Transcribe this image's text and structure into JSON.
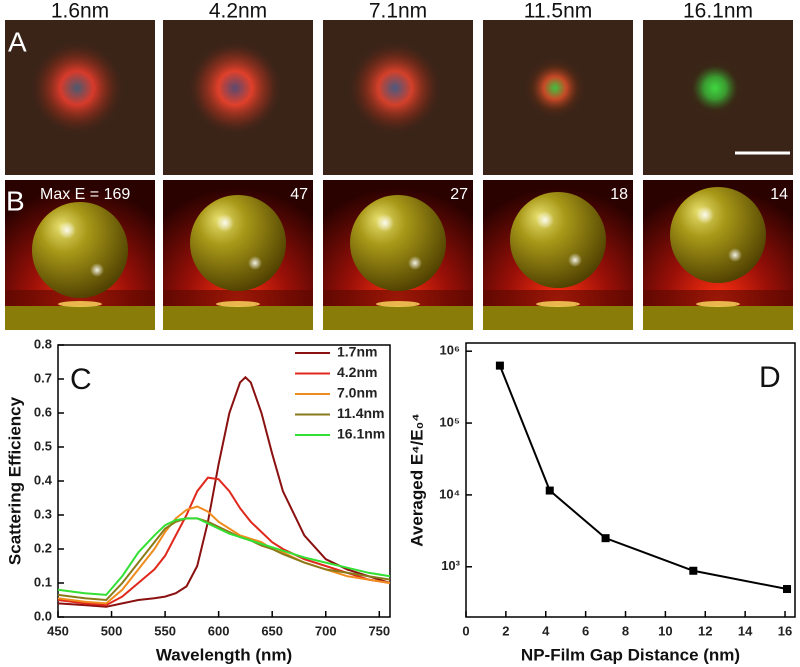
{
  "figure": {
    "columns": [
      "1.6nm",
      "4.2nm",
      "7.1nm",
      "11.5nm",
      "16.1nm"
    ],
    "row_labels": [
      "A",
      "B"
    ],
    "max_e_labels": [
      "Max E = 169",
      "47",
      "27",
      "18",
      "14"
    ]
  },
  "chart_data": [
    {
      "type": "line",
      "panel_label": "C",
      "x_label": "Wavelength (nm)",
      "y_label": "Scattering Efficiency",
      "x": [
        450,
        475,
        495,
        510,
        525,
        540,
        550,
        560,
        570,
        580,
        590,
        600,
        610,
        620,
        625,
        630,
        640,
        650,
        660,
        680,
        700,
        720,
        740,
        760
      ],
      "series": [
        {
          "name": "1.7nm",
          "color": "#8b1010",
          "values": [
            0.04,
            0.035,
            0.03,
            0.04,
            0.05,
            0.055,
            0.06,
            0.07,
            0.09,
            0.15,
            0.28,
            0.45,
            0.6,
            0.69,
            0.705,
            0.69,
            0.6,
            0.48,
            0.37,
            0.24,
            0.17,
            0.14,
            0.12,
            0.1
          ]
        },
        {
          "name": "4.2nm",
          "color": "#e0281c",
          "values": [
            0.05,
            0.04,
            0.035,
            0.06,
            0.1,
            0.14,
            0.18,
            0.24,
            0.3,
            0.37,
            0.41,
            0.405,
            0.37,
            0.32,
            0.3,
            0.28,
            0.25,
            0.22,
            0.2,
            0.17,
            0.15,
            0.13,
            0.11,
            0.1
          ]
        },
        {
          "name": "7.0nm",
          "color": "#f08c1e",
          "values": [
            0.055,
            0.045,
            0.04,
            0.08,
            0.14,
            0.2,
            0.25,
            0.29,
            0.315,
            0.325,
            0.31,
            0.28,
            0.26,
            0.24,
            0.235,
            0.23,
            0.22,
            0.2,
            0.19,
            0.16,
            0.14,
            0.12,
            0.11,
            0.1
          ]
        },
        {
          "name": "11.4nm",
          "color": "#8a7a1a",
          "values": [
            0.065,
            0.055,
            0.05,
            0.1,
            0.16,
            0.22,
            0.26,
            0.28,
            0.29,
            0.29,
            0.28,
            0.265,
            0.25,
            0.235,
            0.23,
            0.225,
            0.21,
            0.2,
            0.185,
            0.16,
            0.14,
            0.13,
            0.12,
            0.11
          ]
        },
        {
          "name": "16.1nm",
          "color": "#33e033",
          "values": [
            0.08,
            0.07,
            0.065,
            0.12,
            0.19,
            0.24,
            0.27,
            0.285,
            0.29,
            0.29,
            0.275,
            0.26,
            0.245,
            0.235,
            0.23,
            0.225,
            0.215,
            0.205,
            0.195,
            0.175,
            0.16,
            0.145,
            0.13,
            0.12
          ]
        }
      ],
      "xlim": [
        450,
        760
      ],
      "xticks": [
        450,
        500,
        550,
        600,
        650,
        700,
        750
      ],
      "ylim": [
        0,
        0.8
      ],
      "yticks": [
        {
          "value": 0,
          "label": "0.0"
        },
        0.1,
        0.2,
        0.3,
        0.4,
        0.5,
        0.6,
        0.7,
        0.8
      ],
      "legend": "upper right"
    },
    {
      "type": "line",
      "panel_label": "D",
      "x_label": "NP-Film Gap Distance (nm)",
      "y_label": "Averaged E⁴/E₀⁴",
      "x": [
        1.7,
        4.2,
        7.0,
        11.4,
        16.1
      ],
      "series": [
        {
          "color": "#000000",
          "marker": "square",
          "values": [
            630000,
            11500,
            2500,
            880,
            490
          ]
        }
      ],
      "xlim": [
        0,
        16.5
      ],
      "xticks": [
        0,
        2,
        4,
        6,
        8,
        10,
        12,
        14,
        16
      ],
      "ylim": [
        200,
        1300000
      ],
      "log_y": true,
      "yticks": [
        {
          "value": 1000,
          "label": "10³"
        },
        {
          "value": 10000,
          "label": "10⁴"
        },
        {
          "value": 100000,
          "label": "10⁵"
        },
        {
          "value": 1000000,
          "label": "10⁶"
        }
      ]
    }
  ]
}
